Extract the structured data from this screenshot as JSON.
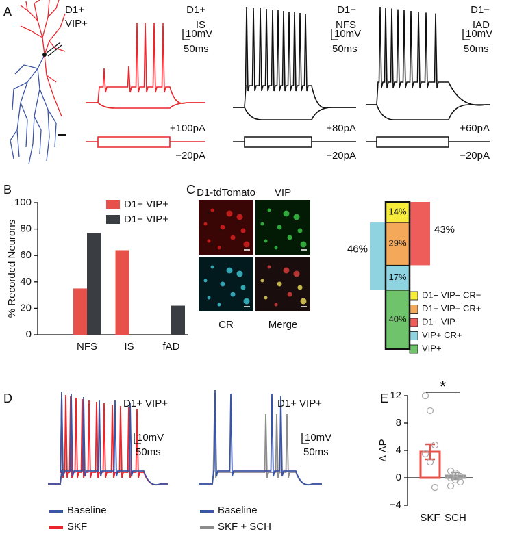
{
  "panel_labels": [
    "A",
    "B",
    "C",
    "D",
    "E"
  ],
  "panel_a": {
    "neuron_label": [
      "D1+",
      "VIP+"
    ],
    "recordings": [
      {
        "label": [
          "D1+",
          "IS"
        ],
        "scale": [
          "10mV",
          "50ms"
        ],
        "steps": [
          "+100pA",
          "−20pA"
        ]
      },
      {
        "label": [
          "D1−",
          "NFS"
        ],
        "scale": [
          "10mV",
          "50ms"
        ],
        "steps": [
          "+80pA",
          "−20pA"
        ]
      },
      {
        "label": [
          "D1−",
          "fAD"
        ],
        "scale": [
          "10mV",
          "50ms"
        ],
        "steps": [
          "+60pA",
          "−20pA"
        ]
      }
    ]
  },
  "panel_c": {
    "images": [
      "D1-tdTomato",
      "VIP",
      "CR",
      "Merge"
    ],
    "marker": "*"
  },
  "panel_d": {
    "recordings": [
      {
        "label": "D1+ VIP+",
        "scale": [
          "10mV",
          "50ms"
        ],
        "legend": [
          {
            "name": "Baseline",
            "color": "#3b55a5"
          },
          {
            "name": "SKF",
            "color": "#e8262c"
          }
        ]
      },
      {
        "label": "D1+ VIP+",
        "scale": [
          "10mV",
          "50ms"
        ],
        "legend": [
          {
            "name": "Baseline",
            "color": "#3b55a5"
          },
          {
            "name": "SKF + SCH",
            "color": "#8c8c8c"
          }
        ]
      }
    ]
  },
  "chart_data": [
    {
      "type": "bar",
      "categories": [
        "NFS",
        "IS",
        "fAD"
      ],
      "series": [
        {
          "name": "D1+ VIP+",
          "color": "#e8504a",
          "values": [
            35,
            64,
            0
          ]
        },
        {
          "name": "D1− VIP+",
          "color": "#3a3d42",
          "values": [
            77,
            0,
            22
          ]
        }
      ],
      "ylabel": "% Recorded Neurons",
      "ylim": [
        0,
        100
      ],
      "yticks": [
        0,
        20,
        40,
        60,
        80,
        100
      ]
    },
    {
      "type": "stacked-column",
      "series": [
        {
          "name": "D1+ VIP+ CR−",
          "color": "#f7ec3c",
          "value": 14,
          "value_label": "14%"
        },
        {
          "name": "D1+ VIP+ CR+",
          "color": "#f4a85a",
          "value": 29,
          "value_label": "29%"
        },
        {
          "name": "D1+ VIP+",
          "color": "#ef5d5a",
          "value": 43,
          "value_label": "43%",
          "bracket": "right"
        },
        {
          "name": "VIP+ CR+",
          "color": "#8fd3e0",
          "value": 17,
          "value_label": "17%"
        },
        {
          "name": "VIP+",
          "color": "#6fc36a",
          "value": 40,
          "value_label": "40%"
        }
      ],
      "brackets": [
        {
          "color": "#8fd3e0",
          "value": 46,
          "value_label": "46%",
          "side": "left"
        }
      ]
    },
    {
      "type": "bar-scatter",
      "categories": [
        "SKF",
        "SCH"
      ],
      "values": [
        3.8,
        0.3
      ],
      "errors": [
        1.1,
        0.5
      ],
      "colors": [
        "#e8504a",
        "#9a9a9a"
      ],
      "points": [
        [
          12,
          9.8,
          4.8,
          3.5,
          2.3,
          -1.4
        ],
        [
          1,
          0.7,
          0.2,
          0,
          -0.3,
          -0.6,
          -1.2
        ]
      ],
      "ylabel": "Δ AP",
      "annotation": "*",
      "ylim": [
        -4,
        12
      ],
      "yticks": [
        {
          "value": -4,
          "label": "−4"
        },
        0,
        4,
        8,
        12
      ]
    }
  ]
}
